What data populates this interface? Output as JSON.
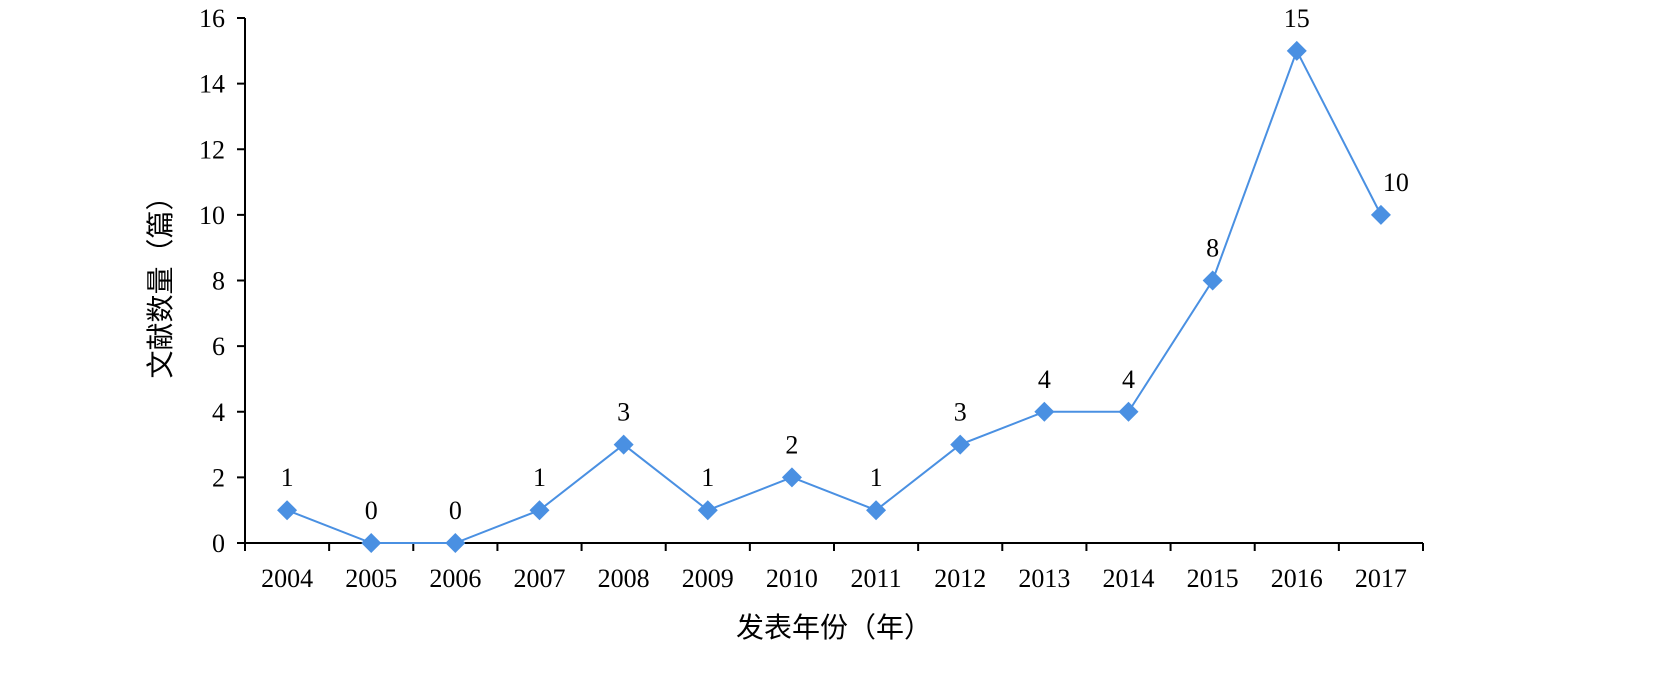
{
  "chart_data": {
    "type": "line",
    "title": "",
    "xlabel": "发表年份（年）",
    "ylabel": "文献数量（篇）",
    "categories": [
      "2004",
      "2005",
      "2006",
      "2007",
      "2008",
      "2009",
      "2010",
      "2011",
      "2012",
      "2013",
      "2014",
      "2015",
      "2016",
      "2017"
    ],
    "values": [
      1,
      0,
      0,
      1,
      3,
      1,
      2,
      1,
      3,
      4,
      4,
      8,
      15,
      10
    ],
    "data_labels": [
      "1",
      "0",
      "0",
      "1",
      "3",
      "1",
      "2",
      "1",
      "3",
      "4",
      "4",
      "8",
      "15",
      "10"
    ],
    "ylim": [
      0,
      16
    ],
    "yticks": [
      "0",
      "2",
      "4",
      "6",
      "8",
      "10",
      "12",
      "14",
      "16"
    ],
    "grid": false,
    "legend": "none",
    "colors": {
      "series": "#4a90e2",
      "axis": "#000000"
    }
  }
}
